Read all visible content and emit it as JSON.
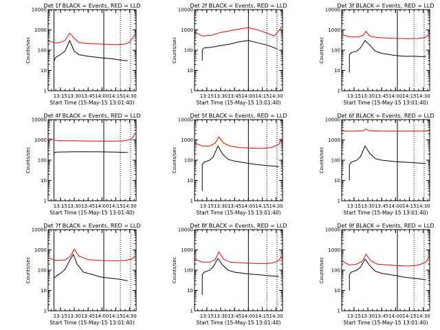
{
  "chart_data": [
    {
      "type": "line",
      "title": "Det 1f BLACK = Events, RED = LLD",
      "xlabel": "Start Time (15-May-15 13:01:40)",
      "ylabel": "Counts/sec",
      "y_scale": "log",
      "ylim": [
        1,
        10000
      ],
      "xlim": [
        "13:01:40",
        "14:37:00"
      ],
      "x_ticks": [
        "13:15",
        "13:30",
        "13:45",
        "14:00",
        "14:15",
        "14:30"
      ],
      "y_ticks": [
        "1",
        "10",
        "100",
        "1000",
        "10000"
      ],
      "solid_vlines": [
        "13:08",
        "14:02"
      ],
      "dotted_vlines": [
        "14:20",
        "14:31"
      ],
      "series": [
        {
          "name": "BLACK",
          "color": "#000000",
          "x": [
            "13:08",
            "13:08",
            "13:10",
            "13:15",
            "13:20",
            "13:25",
            "13:30",
            "13:35",
            "13:45",
            "14:00",
            "14:10",
            "14:15",
            "14:22",
            "14:28"
          ],
          "y": [
            5,
            30,
            45,
            60,
            90,
            300,
            90,
            60,
            50,
            42,
            38,
            35,
            32,
            30
          ]
        },
        {
          "name": "RED",
          "color": "#e00000",
          "x": [
            "13:02",
            "13:10",
            "13:15",
            "13:20",
            "13:25",
            "13:30",
            "13:35",
            "13:45",
            "14:00",
            "14:15",
            "14:25",
            "14:30",
            "14:36"
          ],
          "y": [
            280,
            230,
            240,
            300,
            700,
            380,
            240,
            210,
            200,
            190,
            200,
            250,
            600
          ]
        }
      ]
    },
    {
      "type": "line",
      "title": "Det 2f BLACK = Events, RED = LLD",
      "xlabel": "Start Time (15-May-15 13:01:40)",
      "ylabel": "Counts/sec",
      "y_scale": "log",
      "ylim": [
        1,
        10000
      ],
      "xlim": [
        "13:01:40",
        "14:37:00"
      ],
      "x_ticks": [
        "13:15",
        "13:30",
        "13:45",
        "14:00",
        "14:15",
        "14:30"
      ],
      "y_ticks": [
        "1",
        "10",
        "100",
        "1000",
        "10000"
      ],
      "solid_vlines": [
        "14:00"
      ],
      "dotted_vlines": [
        "14:20",
        "14:31"
      ],
      "series": [
        {
          "name": "BLACK",
          "color": "#000000",
          "x": [
            "13:10",
            "13:10",
            "13:12",
            "13:20",
            "13:30",
            "13:40",
            "13:50",
            "14:00",
            "14:10",
            "14:20",
            "14:25",
            "14:30",
            "14:32"
          ],
          "y": [
            30,
            100,
            130,
            140,
            170,
            200,
            260,
            300,
            230,
            180,
            150,
            120,
            110
          ]
        },
        {
          "name": "RED",
          "color": "#e00000",
          "x": [
            "13:02",
            "13:10",
            "13:20",
            "13:30",
            "13:40",
            "13:50",
            "14:00",
            "14:10",
            "14:20",
            "14:28",
            "14:33",
            "14:36"
          ],
          "y": [
            800,
            500,
            550,
            750,
            900,
            1100,
            1300,
            1000,
            700,
            500,
            900,
            1500
          ]
        }
      ]
    },
    {
      "type": "line",
      "title": "Det 3f BLACK = Events, RED = LLD",
      "xlabel": "Start Time (15-May-15 13:01:40)",
      "ylabel": "Counts/sec",
      "y_scale": "log",
      "ylim": [
        1,
        10000
      ],
      "xlim": [
        "13:01:40",
        "14:37:00"
      ],
      "x_ticks": [
        "13:15",
        "13:30",
        "13:45",
        "14:00",
        "14:15",
        "14:30"
      ],
      "y_ticks": [
        "1",
        "10",
        "100",
        "1000",
        "10000"
      ],
      "solid_vlines": [
        "14:02"
      ],
      "dotted_vlines": [
        "14:20",
        "14:31"
      ],
      "series": [
        {
          "name": "BLACK",
          "color": "#000000",
          "x": [
            "13:10",
            "13:10",
            "13:12",
            "13:18",
            "13:22",
            "13:27",
            "13:32",
            "13:38",
            "13:45",
            "14:00",
            "14:10",
            "14:20",
            "14:30",
            "14:33"
          ],
          "y": [
            8,
            60,
            75,
            90,
            130,
            300,
            180,
            90,
            70,
            55,
            50,
            50,
            48,
            50
          ]
        },
        {
          "name": "RED",
          "color": "#e00000",
          "x": [
            "13:02",
            "13:10",
            "13:20",
            "13:25",
            "13:28",
            "13:32",
            "13:40",
            "14:00",
            "14:15",
            "14:25",
            "14:32",
            "14:36"
          ],
          "y": [
            600,
            450,
            450,
            550,
            850,
            500,
            420,
            380,
            370,
            380,
            420,
            600
          ]
        }
      ]
    },
    {
      "type": "line",
      "title": "Det 4f BLACK = Events, RED = LLD",
      "xlabel": "Start Time (15-May-15 13:01:40)",
      "ylabel": "Counts/sec",
      "y_scale": "log",
      "ylim": [
        1,
        10000
      ],
      "xlim": [
        "13:01:40",
        "14:37:00"
      ],
      "x_ticks": [
        "13:15",
        "13:30",
        "13:45",
        "14:00",
        "14:15",
        "14:30"
      ],
      "y_ticks": [
        "1",
        "10",
        "100",
        "1000",
        "10000"
      ],
      "solid_vlines": [
        "13:08",
        "14:02"
      ],
      "dotted_vlines": [
        "14:20",
        "14:31"
      ],
      "series": [
        {
          "name": "BLACK",
          "color": "#000000",
          "x": [
            "13:08",
            "13:08",
            "13:10",
            "13:20",
            "13:30",
            "13:45",
            "14:00",
            "14:15",
            "14:28"
          ],
          "y": [
            40,
            220,
            250,
            255,
            260,
            260,
            258,
            250,
            240
          ]
        },
        {
          "name": "RED",
          "color": "#e00000",
          "x": [
            "13:02",
            "13:10",
            "13:20",
            "13:30",
            "13:45",
            "14:00",
            "14:15",
            "14:25",
            "14:32",
            "14:36"
          ],
          "y": [
            1200,
            950,
            900,
            900,
            880,
            870,
            870,
            900,
            1100,
            2000
          ]
        }
      ]
    },
    {
      "type": "line",
      "title": "Det 5f BLACK = Events, RED = LLD",
      "xlabel": "Start Time (15-May-15 13:01:40)",
      "ylabel": "Counts/sec",
      "y_scale": "log",
      "ylim": [
        1,
        10000
      ],
      "xlim": [
        "13:01:40",
        "14:37:00"
      ],
      "x_ticks": [
        "13:15",
        "13:30",
        "13:45",
        "14:00",
        "14:15",
        "14:30"
      ],
      "y_ticks": [
        "1",
        "10",
        "100",
        "1000",
        "10000"
      ],
      "solid_vlines": [
        "14:00"
      ],
      "dotted_vlines": [
        "14:20",
        "14:31"
      ],
      "series": [
        {
          "name": "BLACK",
          "color": "#000000",
          "x": [
            "13:10",
            "13:10",
            "13:12",
            "13:18",
            "13:22",
            "13:27",
            "13:32",
            "13:38",
            "13:45",
            "14:00",
            "14:10",
            "14:20",
            "14:30",
            "14:33"
          ],
          "y": [
            3,
            60,
            80,
            100,
            150,
            500,
            200,
            110,
            90,
            70,
            60,
            55,
            50,
            48
          ]
        },
        {
          "name": "RED",
          "color": "#e00000",
          "x": [
            "13:02",
            "13:10",
            "13:18",
            "13:24",
            "13:28",
            "13:33",
            "13:40",
            "13:50",
            "14:00",
            "14:15",
            "14:25",
            "14:33",
            "14:36"
          ],
          "y": [
            700,
            500,
            500,
            700,
            1400,
            700,
            500,
            420,
            400,
            380,
            420,
            600,
            1200
          ]
        }
      ]
    },
    {
      "type": "line",
      "title": "Det 6f BLACK = Events, RED = LLD",
      "xlabel": "Start Time (15-May-15 13:01:40)",
      "ylabel": "Counts/sec",
      "y_scale": "log",
      "ylim": [
        1,
        10000
      ],
      "xlim": [
        "13:01:40",
        "14:37:00"
      ],
      "x_ticks": [
        "13:15",
        "13:30",
        "13:45",
        "14:00",
        "14:15",
        "14:30"
      ],
      "y_ticks": [
        "1",
        "10",
        "100",
        "1000",
        "10000"
      ],
      "solid_vlines": [
        "14:02"
      ],
      "dotted_vlines": [
        "14:20",
        "14:31"
      ],
      "series": [
        {
          "name": "BLACK",
          "color": "#000000",
          "x": [
            "13:10",
            "13:10",
            "13:12",
            "13:18",
            "13:22",
            "13:27",
            "13:32",
            "13:38",
            "13:45",
            "14:00",
            "14:10",
            "14:20",
            "14:30",
            "14:33"
          ],
          "y": [
            10,
            60,
            80,
            100,
            150,
            500,
            220,
            120,
            100,
            85,
            80,
            75,
            70,
            70
          ]
        },
        {
          "name": "RED",
          "color": "#e00000",
          "x": [
            "13:02",
            "13:15",
            "13:25",
            "13:28",
            "13:32",
            "13:45",
            "14:00",
            "14:15",
            "14:30",
            "14:36"
          ],
          "y": [
            2700,
            2700,
            2800,
            3400,
            2800,
            2700,
            2700,
            2700,
            2700,
            2800
          ]
        }
      ]
    },
    {
      "type": "line",
      "title": "Det 7f BLACK = Events, RED = LLD",
      "xlabel": "Start Time (15-May-15 13:01:40)",
      "ylabel": "Counts/sec",
      "y_scale": "log",
      "ylim": [
        1,
        10000
      ],
      "xlim": [
        "13:01:40",
        "14:37:00"
      ],
      "x_ticks": [
        "13:15",
        "13:30",
        "13:45",
        "14:00",
        "14:15",
        "14:30"
      ],
      "y_ticks": [
        "1",
        "10",
        "100",
        "1000",
        "10000"
      ],
      "solid_vlines": [
        "13:08",
        "14:02"
      ],
      "dotted_vlines": [
        "14:20",
        "14:31"
      ],
      "series": [
        {
          "name": "BLACK",
          "color": "#000000",
          "x": [
            "13:08",
            "13:08",
            "13:10",
            "13:15",
            "13:20",
            "13:25",
            "13:29",
            "13:33",
            "13:40",
            "13:50",
            "14:00",
            "14:10",
            "14:20",
            "14:28"
          ],
          "y": [
            4,
            40,
            50,
            70,
            110,
            300,
            600,
            200,
            80,
            60,
            45,
            40,
            35,
            30
          ]
        },
        {
          "name": "RED",
          "color": "#e00000",
          "x": [
            "13:02",
            "13:10",
            "13:20",
            "13:26",
            "13:30",
            "13:35",
            "13:45",
            "14:00",
            "14:15",
            "14:25",
            "14:32",
            "14:36"
          ],
          "y": [
            400,
            300,
            320,
            500,
            1100,
            500,
            330,
            300,
            290,
            300,
            350,
            500
          ]
        }
      ]
    },
    {
      "type": "line",
      "title": "Det 8f BLACK = Events, RED = LLD",
      "xlabel": "Start Time (15-May-15 13:01:40)",
      "ylabel": "Counts/sec",
      "y_scale": "log",
      "ylim": [
        1,
        10000
      ],
      "xlim": [
        "13:01:40",
        "14:37:00"
      ],
      "x_ticks": [
        "13:15",
        "13:30",
        "13:45",
        "14:00",
        "14:15",
        "14:30"
      ],
      "y_ticks": [
        "1",
        "10",
        "100",
        "1000",
        "10000"
      ],
      "solid_vlines": [
        "14:00"
      ],
      "dotted_vlines": [
        "14:20",
        "14:31"
      ],
      "series": [
        {
          "name": "BLACK",
          "color": "#000000",
          "x": [
            "13:10",
            "13:10",
            "13:12",
            "13:18",
            "13:22",
            "13:27",
            "13:32",
            "13:38",
            "13:45",
            "14:00",
            "14:10",
            "14:20",
            "14:30",
            "14:33"
          ],
          "y": [
            6,
            60,
            80,
            100,
            150,
            380,
            180,
            100,
            80,
            65,
            60,
            55,
            50,
            50
          ]
        },
        {
          "name": "RED",
          "color": "#e00000",
          "x": [
            "13:02",
            "13:10",
            "13:18",
            "13:24",
            "13:28",
            "13:33",
            "13:40",
            "14:00",
            "14:15",
            "14:25",
            "14:33",
            "14:36"
          ],
          "y": [
            350,
            250,
            250,
            330,
            800,
            350,
            250,
            220,
            210,
            220,
            300,
            500
          ]
        }
      ]
    },
    {
      "type": "line",
      "title": "Det 9f BLACK = Events, RED = LLD",
      "xlabel": "Start Time (15-May-15 13:01:40)",
      "ylabel": "Counts/sec",
      "y_scale": "log",
      "ylim": [
        1,
        10000
      ],
      "xlim": [
        "13:01:40",
        "14:37:00"
      ],
      "x_ticks": [
        "13:15",
        "13:30",
        "13:45",
        "14:00",
        "14:15",
        "14:30"
      ],
      "y_ticks": [
        "1",
        "10",
        "100",
        "1000",
        "10000"
      ],
      "solid_vlines": [
        "14:02"
      ],
      "dotted_vlines": [
        "14:20",
        "14:31"
      ],
      "series": [
        {
          "name": "BLACK",
          "color": "#000000",
          "x": [
            "13:10",
            "13:10",
            "13:12",
            "13:18",
            "13:22",
            "13:27",
            "13:32",
            "13:38",
            "13:45",
            "14:00",
            "14:10",
            "14:20",
            "14:30",
            "14:33"
          ],
          "y": [
            10,
            60,
            80,
            100,
            140,
            350,
            170,
            90,
            70,
            55,
            45,
            40,
            35,
            33
          ]
        },
        {
          "name": "RED",
          "color": "#e00000",
          "x": [
            "13:02",
            "13:10",
            "13:18",
            "13:24",
            "13:28",
            "13:33",
            "13:40",
            "14:00",
            "14:15",
            "14:25",
            "14:33",
            "14:36"
          ],
          "y": [
            280,
            180,
            200,
            280,
            600,
            300,
            200,
            170,
            160,
            180,
            250,
            450
          ]
        }
      ]
    }
  ]
}
